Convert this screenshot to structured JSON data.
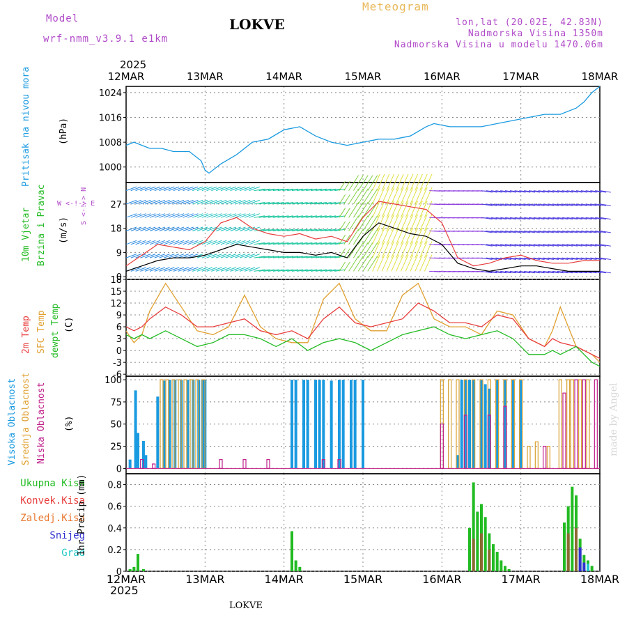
{
  "header": {
    "model_label": "Model",
    "model_name": "wrf-nmm_v3.9.1 e1km",
    "station": "LOKVE",
    "product": "Meteogram",
    "coords": "lon,lat (20.02E, 42.83N)",
    "elevation": "Nadmorska Visina 1350m",
    "model_elevation": "Nadmorska Visina u modelu 1470.06m",
    "year_top": "2025",
    "year_bottom": "2025",
    "footer_station": "LOKVE",
    "credit": "made by Angel"
  },
  "colors": {
    "pressure": "#1a9ae0",
    "t2m": "#e83c3c",
    "tsfc": "#e0a030",
    "dewpt": "#22bb22",
    "cloud_high": "#1a9ae0",
    "cloud_mid": "#d8a030",
    "cloud_low": "#c0208a",
    "rain_total": "#22bb22",
    "rain_conv": "#e83c3c",
    "rain_frz": "#e87830",
    "snow": "#3030d0",
    "hail": "#22c8c8"
  },
  "panel_labels": {
    "pressure": {
      "name": "Pritisak na nivou mora",
      "unit": "(hPa)"
    },
    "wind": {
      "name1": "10m Vjetar",
      "name2": "Brzina i Pravac",
      "unit": "(m/s)",
      "compass": "W <-!-> E",
      "compass_ns": "S <-!-> N"
    },
    "temp": {
      "name1": "2m Temp",
      "name2": "SFC Temp",
      "name3": "dewpt Temp",
      "unit": "(C)"
    },
    "cloud": {
      "name1": "Visoka Oblacnost",
      "name2": "Srednja Oblacnost",
      "name3": "Niska Oblacnost",
      "unit": "(%)"
    },
    "precip": {
      "l1": "Ukupna Kisa",
      "l2": "Konvek.Kisa",
      "l3": "Zaledj.Kisa",
      "l4": "Snijeg",
      "l5": "Grad",
      "unit": "1hr Precip (mm)"
    }
  },
  "chart_data": [
    {
      "type": "line",
      "name": "pressure",
      "x_ticks": [
        "12MAR",
        "13MAR",
        "14MAR",
        "15MAR",
        "16MAR",
        "17MAR",
        "18MAR"
      ],
      "yticks": [
        1000,
        1008,
        1016,
        1024
      ],
      "ylim": [
        995,
        1026
      ],
      "series": [
        {
          "name": "Pritisak na nivou mora",
          "x": [
            0,
            0.1,
            0.2,
            0.3,
            0.45,
            0.6,
            0.8,
            0.95,
            1.0,
            1.05,
            1.2,
            1.4,
            1.6,
            1.8,
            2.0,
            2.2,
            2.4,
            2.6,
            2.8,
            3.0,
            3.2,
            3.4,
            3.6,
            3.8,
            3.9,
            4.1,
            4.3,
            4.5,
            4.7,
            4.9,
            5.1,
            5.3,
            5.5,
            5.7,
            5.8,
            5.9,
            6.0
          ],
          "values": [
            1007,
            1008,
            1007,
            1006,
            1006,
            1005,
            1005,
            1002,
            999,
            998,
            1001,
            1004,
            1008,
            1009,
            1012,
            1013,
            1010,
            1008,
            1007,
            1008,
            1009,
            1009,
            1010,
            1013,
            1014,
            1013,
            1013,
            1013,
            1014,
            1015,
            1016,
            1017,
            1017,
            1019,
            1021,
            1024,
            1026
          ]
        }
      ]
    },
    {
      "type": "line",
      "name": "wind",
      "yticks": [
        0,
        9,
        18,
        27
      ],
      "ylim": [
        -1,
        35
      ],
      "series": [
        {
          "name": "wind speed",
          "x": [
            0,
            0.2,
            0.4,
            0.6,
            0.8,
            1.0,
            1.2,
            1.4,
            1.6,
            1.8,
            2.0,
            2.2,
            2.4,
            2.6,
            2.8,
            3.0,
            3.2,
            3.4,
            3.6,
            3.8,
            4.0,
            4.2,
            4.4,
            4.6,
            4.8,
            5.0,
            5.2,
            5.4,
            5.6,
            5.8,
            6.0
          ],
          "values": [
            2,
            4,
            6,
            7,
            7,
            8,
            10,
            12,
            11,
            10,
            9,
            9,
            8,
            9,
            7,
            15,
            20,
            18,
            16,
            15,
            12,
            5,
            3,
            2,
            3,
            4,
            4,
            3,
            2,
            2,
            2
          ]
        },
        {
          "name": "gust",
          "x": [
            0,
            0.2,
            0.4,
            0.6,
            0.8,
            1.0,
            1.2,
            1.4,
            1.6,
            1.8,
            2.0,
            2.2,
            2.4,
            2.6,
            2.8,
            3.0,
            3.2,
            3.4,
            3.6,
            3.8,
            4.0,
            4.2,
            4.4,
            4.6,
            4.8,
            5.0,
            5.2,
            5.4,
            5.6,
            5.8,
            6.0
          ],
          "values": [
            4,
            8,
            12,
            11,
            10,
            13,
            20,
            22,
            18,
            16,
            15,
            16,
            14,
            15,
            13,
            22,
            28,
            27,
            26,
            25,
            20,
            7,
            4,
            5,
            7,
            8,
            6,
            5,
            5,
            6,
            6
          ]
        }
      ]
    },
    {
      "type": "line",
      "name": "temperature",
      "yticks": [
        -6,
        -3,
        0,
        3,
        6,
        9,
        12,
        15,
        18
      ],
      "ylim": [
        -6.5,
        18
      ],
      "series": [
        {
          "name": "2m Temp",
          "x": [
            0,
            0.1,
            0.2,
            0.3,
            0.5,
            0.7,
            0.9,
            1.1,
            1.3,
            1.5,
            1.7,
            1.9,
            2.1,
            2.3,
            2.5,
            2.7,
            2.9,
            3.1,
            3.3,
            3.5,
            3.7,
            3.9,
            4.1,
            4.3,
            4.5,
            4.7,
            4.9,
            5.1,
            5.3,
            5.4,
            5.5,
            5.7,
            5.9,
            6.0
          ],
          "values": [
            6,
            5,
            6,
            8,
            11,
            9,
            6,
            6,
            7,
            8,
            5,
            4,
            5,
            3,
            8,
            11,
            7,
            6,
            7,
            8,
            12,
            10,
            7,
            7,
            6,
            9,
            8,
            3,
            1,
            3,
            2,
            1,
            -1,
            -2
          ]
        },
        {
          "name": "SFC Temp",
          "x": [
            0,
            0.1,
            0.2,
            0.3,
            0.5,
            0.7,
            0.9,
            1.1,
            1.3,
            1.5,
            1.7,
            1.9,
            2.1,
            2.3,
            2.5,
            2.7,
            2.9,
            3.1,
            3.3,
            3.5,
            3.7,
            3.9,
            4.1,
            4.3,
            4.5,
            4.7,
            4.9,
            5.1,
            5.3,
            5.4,
            5.5,
            5.7,
            5.9,
            6.0
          ],
          "values": [
            5,
            2,
            4,
            10,
            17,
            11,
            5,
            4,
            6,
            14,
            6,
            3,
            2,
            2,
            13,
            17,
            8,
            5,
            5,
            14,
            17,
            8,
            6,
            6,
            4,
            10,
            9,
            3,
            1,
            5,
            11,
            1,
            -1,
            -3
          ]
        },
        {
          "name": "dewpt Temp",
          "x": [
            0,
            0.1,
            0.2,
            0.3,
            0.5,
            0.7,
            0.9,
            1.1,
            1.3,
            1.5,
            1.7,
            1.9,
            2.1,
            2.3,
            2.5,
            2.7,
            2.9,
            3.1,
            3.3,
            3.5,
            3.7,
            3.9,
            4.1,
            4.3,
            4.5,
            4.7,
            4.9,
            5.1,
            5.3,
            5.4,
            5.5,
            5.7,
            5.9,
            6.0
          ],
          "values": [
            4,
            3,
            4,
            3,
            5,
            3,
            1,
            2,
            4,
            4,
            3,
            1,
            3,
            0,
            2,
            3,
            2,
            0,
            2,
            4,
            5,
            6,
            4,
            3,
            4,
            5,
            3,
            -1,
            -1,
            0,
            -1,
            1,
            -3,
            -4
          ]
        }
      ]
    },
    {
      "type": "bar",
      "name": "cloud",
      "yticks": [
        0,
        25,
        50,
        75,
        100
      ],
      "ylim": [
        0,
        100
      ],
      "series": [
        {
          "name": "Visoka Oblacnost",
          "x": [
            0.05,
            0.12,
            0.15,
            0.22,
            0.25,
            0.4,
            0.48,
            0.55,
            0.62,
            0.7,
            0.78,
            0.85,
            0.92,
            0.97,
            1.0,
            2.1,
            2.15,
            2.25,
            2.3,
            2.4,
            2.45,
            2.5,
            2.6,
            2.7,
            2.75,
            2.85,
            2.9,
            3.0,
            4.2,
            4.25,
            4.3,
            4.35,
            4.4,
            4.5,
            4.55,
            4.6,
            4.7,
            4.8,
            4.9,
            5.0
          ],
          "values": [
            10,
            88,
            40,
            31,
            15,
            81,
            99,
            100,
            100,
            100,
            100,
            100,
            100,
            100,
            100,
            100,
            100,
            100,
            100,
            100,
            100,
            100,
            99,
            100,
            100,
            100,
            100,
            100,
            15,
            100,
            100,
            100,
            100,
            100,
            95,
            90,
            100,
            100,
            100,
            100
          ]
        },
        {
          "name": "Srednja Oblacnost",
          "x": [
            0.45,
            0.52,
            0.6,
            0.68,
            0.75,
            0.83,
            0.9,
            0.98,
            4.0,
            4.1,
            4.2,
            4.3,
            4.4,
            4.5,
            4.6,
            4.7,
            4.8,
            4.9,
            5.0,
            5.1,
            5.2,
            5.35,
            5.5,
            5.6,
            5.65,
            5.75,
            5.85
          ],
          "values": [
            100,
            100,
            100,
            100,
            100,
            100,
            100,
            100,
            100,
            100,
            100,
            100,
            100,
            100,
            100,
            100,
            100,
            100,
            100,
            25,
            30,
            25,
            100,
            100,
            100,
            100,
            100
          ]
        },
        {
          "name": "Niska Oblacnost",
          "x": [
            0.2,
            0.35,
            1.2,
            1.5,
            1.8,
            2.5,
            2.7,
            4.0,
            4.3,
            4.6,
            4.8,
            5.3,
            5.55,
            5.7,
            5.8,
            5.95
          ],
          "values": [
            10,
            5,
            10,
            10,
            10,
            10,
            10,
            50,
            60,
            60,
            70,
            25,
            85,
            100,
            100,
            100
          ]
        }
      ]
    },
    {
      "type": "bar",
      "name": "precip",
      "yticks": [
        0,
        0.2,
        0.4,
        0.6,
        0.8
      ],
      "ylim": [
        0,
        0.9
      ],
      "series": [
        {
          "name": "Ukupna Kisa",
          "x": [
            0.05,
            0.1,
            0.15,
            0.22,
            2.1,
            2.15,
            2.2,
            4.35,
            4.4,
            4.45,
            4.5,
            4.55,
            4.6,
            4.65,
            4.7,
            4.75,
            4.8,
            4.85,
            5.55,
            5.6,
            5.65,
            5.7,
            5.75,
            5.8,
            5.85,
            5.9
          ],
          "values": [
            0.02,
            0.04,
            0.16,
            0.02,
            0.37,
            0.1,
            0.04,
            0.4,
            0.82,
            0.55,
            0.62,
            0.5,
            0.35,
            0.25,
            0.18,
            0.1,
            0.05,
            0.02,
            0.45,
            0.6,
            0.78,
            0.7,
            0.3,
            0.15,
            0.1,
            0.05
          ]
        },
        {
          "name": "Konvek.Kisa",
          "x": [
            4.4,
            4.5,
            4.6,
            5.6,
            5.7
          ],
          "values": [
            0.3,
            0.35,
            0.2,
            0.35,
            0.4
          ]
        },
        {
          "name": "Snijeg",
          "x": [
            5.75,
            5.8
          ],
          "values": [
            0.22,
            0.08
          ]
        },
        {
          "name": "Grad",
          "x": [
            5.85
          ],
          "values": [
            0.07
          ]
        }
      ]
    }
  ]
}
